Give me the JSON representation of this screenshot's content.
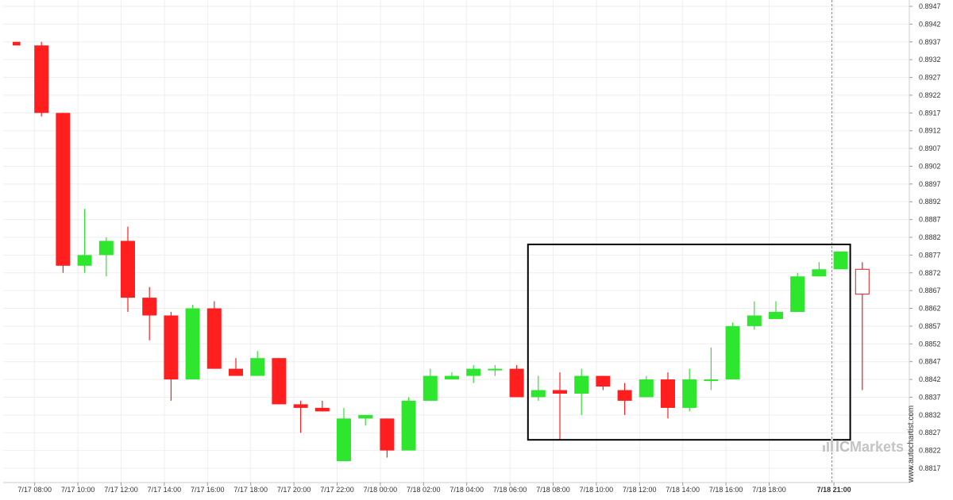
{
  "chart_data": {
    "type": "candlestick",
    "title": "",
    "xlabel": "",
    "ylabel": "",
    "ylim": [
      0.8814,
      0.8947
    ],
    "y_ticks": [
      "0.8947",
      "0.8942",
      "0.8937",
      "0.8932",
      "0.8927",
      "0.8922",
      "0.8917",
      "0.8912",
      "0.8907",
      "0.8902",
      "0.8897",
      "0.8892",
      "0.8887",
      "0.8882",
      "0.8877",
      "0.8872",
      "0.8867",
      "0.8862",
      "0.8857",
      "0.8852",
      "0.8847",
      "0.8842",
      "0.8837",
      "0.8832",
      "0.8827",
      "0.8822",
      "0.8817"
    ],
    "x_ticks": [
      {
        "label": "7/17 08:00",
        "index": 1
      },
      {
        "label": "7/17 10:00",
        "index": 3
      },
      {
        "label": "7/17 12:00",
        "index": 5
      },
      {
        "label": "7/17 14:00",
        "index": 7
      },
      {
        "label": "7/17 16:00",
        "index": 9
      },
      {
        "label": "7/17 18:00",
        "index": 11
      },
      {
        "label": "7/17 20:00",
        "index": 13
      },
      {
        "label": "7/17 22:00",
        "index": 15
      },
      {
        "label": "7/18 00:00",
        "index": 17
      },
      {
        "label": "7/18 02:00",
        "index": 19
      },
      {
        "label": "7/18 04:00",
        "index": 21
      },
      {
        "label": "7/18 06:00",
        "index": 23
      },
      {
        "label": "7/18 08:00",
        "index": 25
      },
      {
        "label": "7/18 10:00",
        "index": 27
      },
      {
        "label": "7/18 12:00",
        "index": 29
      },
      {
        "label": "7/18 14:00",
        "index": 31
      },
      {
        "label": "7/18 16:00",
        "index": 33
      },
      {
        "label": "7/18 18:00",
        "index": 35
      },
      {
        "label": "7/18 21:00",
        "index": 38,
        "bold": true
      }
    ],
    "candles": [
      {
        "o": 0.8937,
        "h": 0.8937,
        "l": 0.8936,
        "c": 0.8936
      },
      {
        "o": 0.8936,
        "h": 0.8937,
        "l": 0.8916,
        "c": 0.8917
      },
      {
        "o": 0.8917,
        "h": 0.8917,
        "l": 0.8872,
        "c": 0.8874
      },
      {
        "o": 0.8874,
        "h": 0.889,
        "l": 0.8872,
        "c": 0.8877
      },
      {
        "o": 0.8877,
        "h": 0.8882,
        "l": 0.8871,
        "c": 0.8881
      },
      {
        "o": 0.8881,
        "h": 0.8885,
        "l": 0.8861,
        "c": 0.8865
      },
      {
        "o": 0.8865,
        "h": 0.8868,
        "l": 0.8853,
        "c": 0.886
      },
      {
        "o": 0.886,
        "h": 0.8861,
        "l": 0.8836,
        "c": 0.8842
      },
      {
        "o": 0.8842,
        "h": 0.8863,
        "l": 0.8842,
        "c": 0.8862
      },
      {
        "o": 0.8862,
        "h": 0.8864,
        "l": 0.8845,
        "c": 0.8845
      },
      {
        "o": 0.8845,
        "h": 0.8848,
        "l": 0.8843,
        "c": 0.8843
      },
      {
        "o": 0.8843,
        "h": 0.885,
        "l": 0.8843,
        "c": 0.8848
      },
      {
        "o": 0.8848,
        "h": 0.8848,
        "l": 0.8835,
        "c": 0.8835
      },
      {
        "o": 0.8835,
        "h": 0.8836,
        "l": 0.8827,
        "c": 0.8834
      },
      {
        "o": 0.8834,
        "h": 0.8836,
        "l": 0.8833,
        "c": 0.8833
      },
      {
        "o": 0.8819,
        "h": 0.8834,
        "l": 0.8819,
        "c": 0.8831
      },
      {
        "o": 0.8831,
        "h": 0.8832,
        "l": 0.8829,
        "c": 0.8832
      },
      {
        "o": 0.8831,
        "h": 0.8831,
        "l": 0.882,
        "c": 0.8822
      },
      {
        "o": 0.8822,
        "h": 0.8837,
        "l": 0.8822,
        "c": 0.8836
      },
      {
        "o": 0.8836,
        "h": 0.8845,
        "l": 0.8836,
        "c": 0.8843
      },
      {
        "o": 0.8842,
        "h": 0.8844,
        "l": 0.8842,
        "c": 0.8843
      },
      {
        "o": 0.8843,
        "h": 0.8846,
        "l": 0.8841,
        "c": 0.8845
      },
      {
        "o": 0.8845,
        "h": 0.8846,
        "l": 0.8843,
        "c": 0.8845
      },
      {
        "o": 0.8845,
        "h": 0.8846,
        "l": 0.8837,
        "c": 0.8837
      },
      {
        "o": 0.8837,
        "h": 0.8843,
        "l": 0.8836,
        "c": 0.8839
      },
      {
        "o": 0.8839,
        "h": 0.8844,
        "l": 0.8825,
        "c": 0.8838
      },
      {
        "o": 0.8838,
        "h": 0.8845,
        "l": 0.8832,
        "c": 0.8843
      },
      {
        "o": 0.8843,
        "h": 0.8843,
        "l": 0.8839,
        "c": 0.884
      },
      {
        "o": 0.8839,
        "h": 0.8841,
        "l": 0.8832,
        "c": 0.8836
      },
      {
        "o": 0.8837,
        "h": 0.8843,
        "l": 0.8837,
        "c": 0.8842
      },
      {
        "o": 0.8842,
        "h": 0.8844,
        "l": 0.8831,
        "c": 0.8834
      },
      {
        "o": 0.8834,
        "h": 0.8845,
        "l": 0.8833,
        "c": 0.8842
      },
      {
        "o": 0.8842,
        "h": 0.8851,
        "l": 0.8839,
        "c": 0.8842
      },
      {
        "o": 0.8842,
        "h": 0.8858,
        "l": 0.8842,
        "c": 0.8857
      },
      {
        "o": 0.8857,
        "h": 0.8864,
        "l": 0.8856,
        "c": 0.886
      },
      {
        "o": 0.8859,
        "h": 0.8864,
        "l": 0.8859,
        "c": 0.8861
      },
      {
        "o": 0.8861,
        "h": 0.8872,
        "l": 0.8861,
        "c": 0.8871
      },
      {
        "o": 0.8871,
        "h": 0.8875,
        "l": 0.8871,
        "c": 0.8873
      },
      {
        "o": 0.8873,
        "h": 0.8878,
        "l": 0.8873,
        "c": 0.8878
      },
      {
        "o": 0.8873,
        "h": 0.8875,
        "l": 0.8839,
        "c": 0.8866,
        "hollow": true
      }
    ],
    "highlight_box": {
      "from_index": 24,
      "to_index": 38,
      "low": 0.8825,
      "high": 0.888
    },
    "current_time_index": 38,
    "grid": true,
    "colors": {
      "up": "#2ee62e",
      "down": "#ff1f1f",
      "hollow_stroke": "#dd2222",
      "grid": "#eeeeee",
      "box": "#000000",
      "current_line": "#888888"
    }
  },
  "watermark": {
    "brand": "IC Markets",
    "brand_prefix": "IC",
    "brand_suffix": "Markets",
    "site": "www.autochartist.com"
  }
}
